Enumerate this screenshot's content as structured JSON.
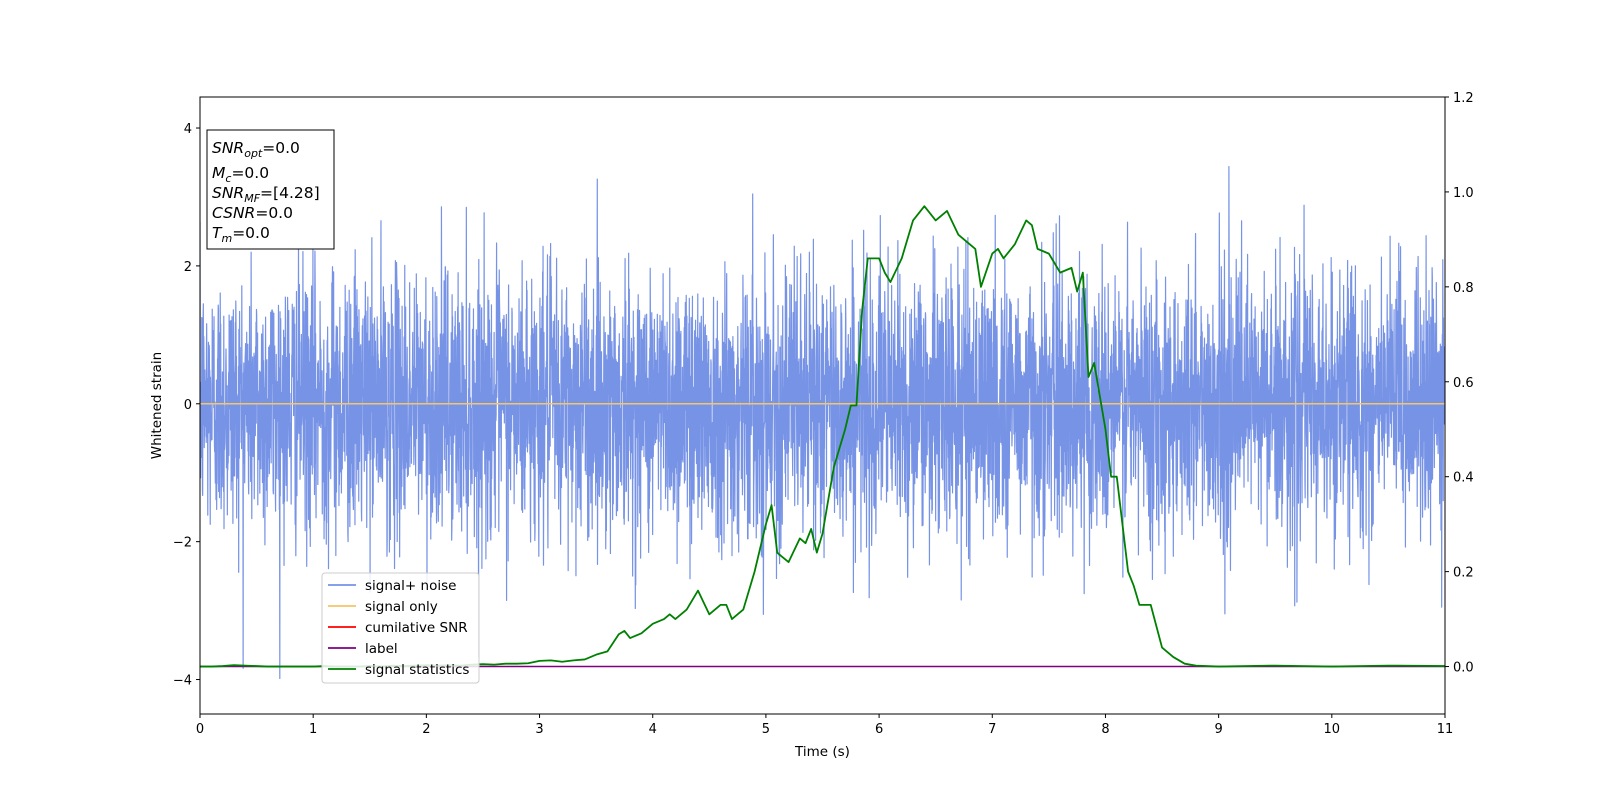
{
  "chart_data": {
    "type": "line",
    "xlabel": "Time (s)",
    "ylabel": "Whitened strain",
    "xlim": [
      0,
      11
    ],
    "ylim": [
      -4.5,
      4.45
    ],
    "ylim_right": [
      -0.1,
      1.2
    ],
    "x_ticks": [
      "0",
      "1",
      "2",
      "3",
      "4",
      "5",
      "6",
      "7",
      "8",
      "9",
      "10",
      "11"
    ],
    "y_ticks": [
      "−4",
      "−2",
      "0",
      "2",
      "4"
    ],
    "y_ticks_values": [
      -4,
      -2,
      0,
      2,
      4
    ],
    "y_right_ticks": [
      "0.0",
      "0.2",
      "0.4",
      "0.6",
      "0.8",
      "1.0",
      "1.2"
    ],
    "y_right_ticks_values": [
      0.0,
      0.2,
      0.4,
      0.6,
      0.8,
      1.0,
      1.2
    ],
    "grid": false,
    "legend_position": "lower-left",
    "info_box": {
      "lines": [
        {
          "base": "SNR",
          "sub": "opt",
          "rest": "=0.0"
        },
        {
          "base": "M",
          "sub": "c",
          "rest": "=0.0"
        },
        {
          "base": "SNR",
          "sub": "MF",
          "rest": "=[4.28]"
        },
        {
          "base": "CSNR",
          "sub": "",
          "rest": "=0.0"
        },
        {
          "base": "T",
          "sub": "m",
          "rest": "=0.0"
        }
      ]
    },
    "series": [
      {
        "name": "signal+ noise",
        "color": "#7793e6",
        "axis": "left",
        "note_values": "noise-like strain, approx. range -4.2 to 4.0, band mostly within -2.5 to 2.5"
      },
      {
        "name": "signal only",
        "color": "#f5c56a",
        "axis": "left",
        "x": [
          0,
          11
        ],
        "y": [
          0,
          0
        ]
      },
      {
        "name": "cumilative SNR",
        "color": "#ff0000",
        "axis": "right",
        "x": [],
        "y": []
      },
      {
        "name": "label",
        "color": "#800080",
        "axis": "right",
        "x": [
          0,
          11
        ],
        "y": [
          0,
          0
        ]
      },
      {
        "name": "signal statistics",
        "color": "#008000",
        "axis": "right",
        "x": [
          0.0,
          0.1,
          0.2,
          0.3,
          0.4,
          0.5,
          0.6,
          0.7,
          0.8,
          0.9,
          1.0,
          1.1,
          1.2,
          1.3,
          1.4,
          1.5,
          1.6,
          1.7,
          1.8,
          1.9,
          2.0,
          2.1,
          2.2,
          2.3,
          2.4,
          2.5,
          2.6,
          2.7,
          2.8,
          2.9,
          3.0,
          3.1,
          3.2,
          3.3,
          3.4,
          3.5,
          3.6,
          3.7,
          3.75,
          3.8,
          3.9,
          4.0,
          4.1,
          4.15,
          4.2,
          4.3,
          4.35,
          4.4,
          4.5,
          4.6,
          4.65,
          4.7,
          4.8,
          4.9,
          5.0,
          5.05,
          5.1,
          5.15,
          5.2,
          5.3,
          5.35,
          5.4,
          5.45,
          5.5,
          5.6,
          5.7,
          5.75,
          5.8,
          5.85,
          5.9,
          6.0,
          6.05,
          6.1,
          6.2,
          6.3,
          6.4,
          6.5,
          6.6,
          6.7,
          6.8,
          6.85,
          6.9,
          7.0,
          7.05,
          7.1,
          7.2,
          7.3,
          7.35,
          7.4,
          7.5,
          7.6,
          7.7,
          7.75,
          7.8,
          7.85,
          7.9,
          8.0,
          8.05,
          8.1,
          8.2,
          8.25,
          8.3,
          8.4,
          8.5,
          8.6,
          8.7,
          8.8,
          9.0,
          9.5,
          10.0,
          10.5,
          11.0
        ],
        "y": [
          0.0,
          0.0,
          0.001,
          0.003,
          0.002,
          0.001,
          0.0,
          0.0,
          0.0,
          0.0,
          0.0,
          0.001,
          0.0,
          0.0,
          0.0,
          0.001,
          0.0,
          0.002,
          0.001,
          0.002,
          0.003,
          0.002,
          0.003,
          0.002,
          0.004,
          0.005,
          0.004,
          0.006,
          0.006,
          0.007,
          0.012,
          0.013,
          0.01,
          0.013,
          0.015,
          0.025,
          0.032,
          0.068,
          0.075,
          0.06,
          0.07,
          0.09,
          0.1,
          0.11,
          0.1,
          0.12,
          0.14,
          0.16,
          0.11,
          0.13,
          0.13,
          0.1,
          0.12,
          0.2,
          0.3,
          0.34,
          0.24,
          0.23,
          0.22,
          0.27,
          0.26,
          0.29,
          0.24,
          0.28,
          0.42,
          0.5,
          0.55,
          0.55,
          0.75,
          0.86,
          0.86,
          0.83,
          0.81,
          0.86,
          0.94,
          0.97,
          0.94,
          0.96,
          0.91,
          0.89,
          0.88,
          0.8,
          0.87,
          0.88,
          0.86,
          0.89,
          0.94,
          0.93,
          0.88,
          0.87,
          0.83,
          0.84,
          0.79,
          0.83,
          0.61,
          0.64,
          0.5,
          0.4,
          0.4,
          0.2,
          0.17,
          0.13,
          0.13,
          0.04,
          0.02,
          0.006,
          0.002,
          0.0,
          0.002,
          0.0,
          0.002,
          0.001
        ]
      }
    ]
  }
}
